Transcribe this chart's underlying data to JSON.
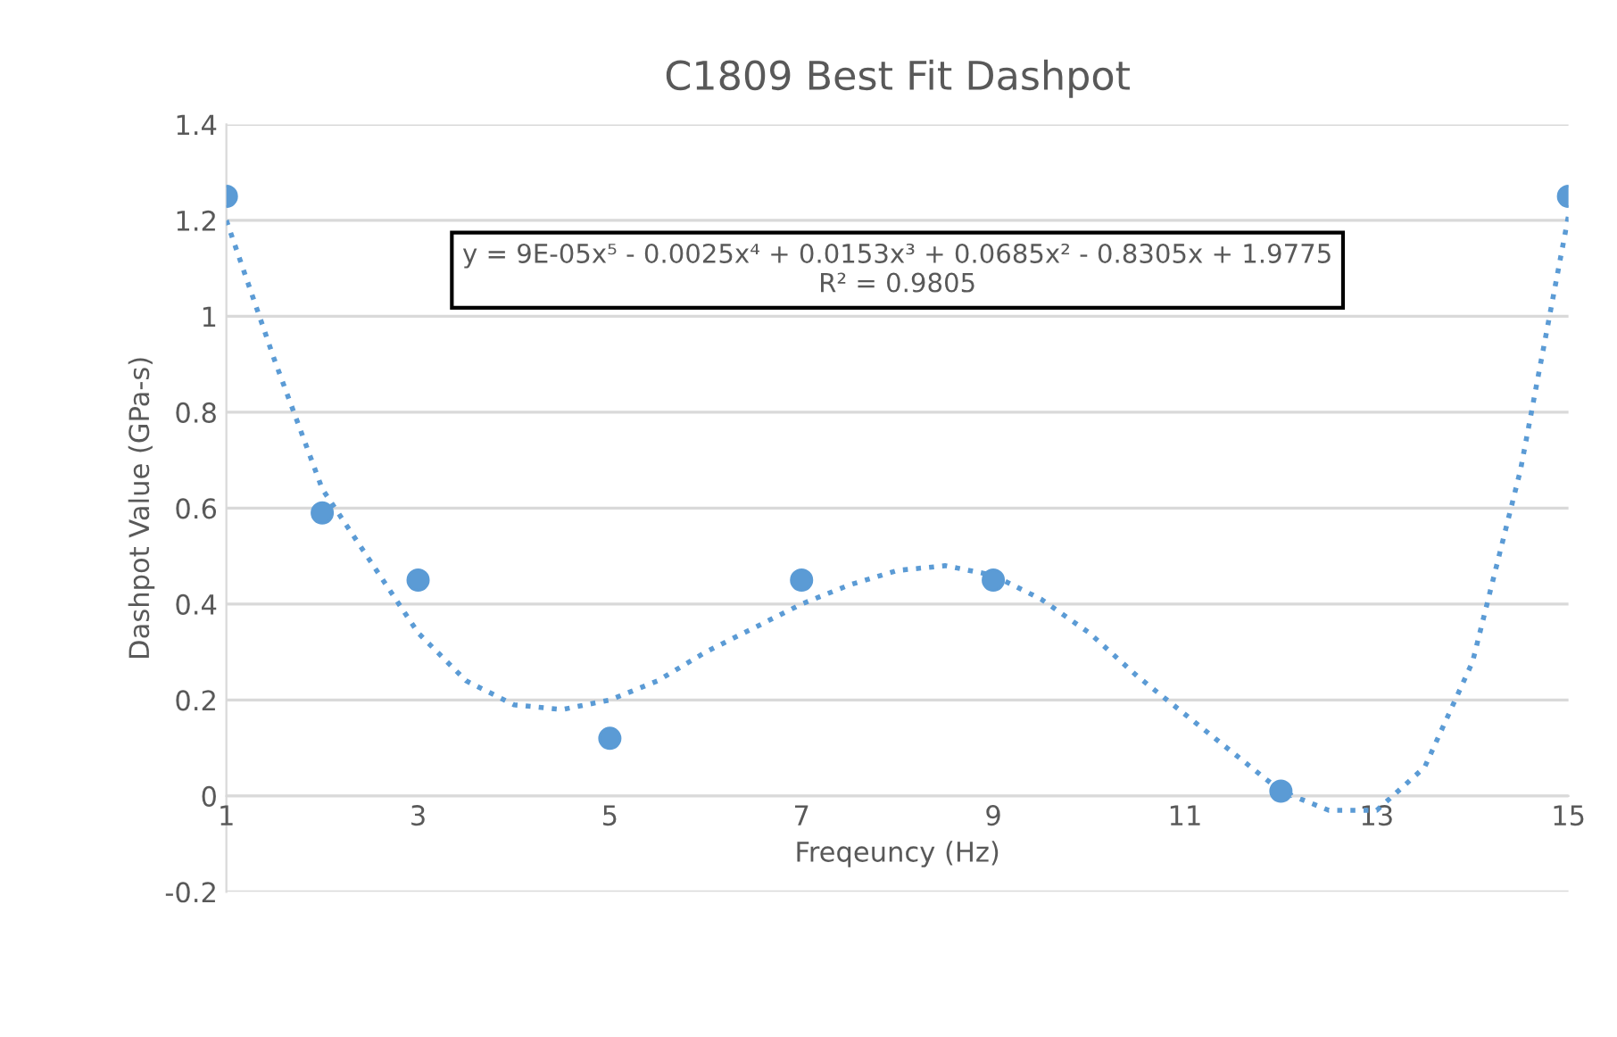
{
  "chart_data": {
    "type": "scatter",
    "title": "C1809 Best Fit Dashpot",
    "xlabel": "Freqeuncy (Hz)",
    "ylabel": "Dashpot Value (GPa-s)",
    "x": [
      1,
      2,
      3,
      5,
      7,
      9,
      12,
      15
    ],
    "series": [
      {
        "color": "#5b9bd5",
        "marker": "circle",
        "values": [
          1.25,
          0.59,
          0.45,
          0.12,
          0.45,
          0.45,
          0.01,
          1.25
        ]
      },
      {
        "type": "line",
        "color": "#5b9bd5",
        "line_style": "dotted",
        "marker": "none",
        "x": [
          1,
          1.5,
          2,
          2.5,
          3,
          3.5,
          4,
          4.5,
          5,
          5.5,
          6,
          6.5,
          7,
          7.5,
          8,
          8.5,
          9,
          9.5,
          10,
          10.5,
          11,
          11.5,
          12,
          12.5,
          13,
          13.5,
          14,
          14.5,
          15
        ],
        "values": [
          1.2,
          0.91,
          0.64,
          0.49,
          0.34,
          0.24,
          0.19,
          0.18,
          0.2,
          0.24,
          0.3,
          0.35,
          0.4,
          0.44,
          0.47,
          0.48,
          0.46,
          0.41,
          0.34,
          0.25,
          0.17,
          0.09,
          0.01,
          -0.03,
          -0.03,
          0.06,
          0.28,
          0.68,
          1.21
        ]
      }
    ],
    "annotations": [
      "y = 9E-05x⁵ - 0.0025x⁴ + 0.0153x³ + 0.0685x² - 0.8305x + 1.9775\nR² = 0.9805"
    ],
    "xlim": [
      1,
      15
    ],
    "xticks": [
      1,
      3,
      5,
      7,
      9,
      11,
      13,
      15
    ],
    "ylim": [
      -0.2,
      1.4
    ],
    "yticks": [
      -0.2,
      0,
      0.2,
      0.4,
      0.6,
      0.8,
      1,
      1.2,
      1.4
    ],
    "grid": "y",
    "legend": false
  }
}
